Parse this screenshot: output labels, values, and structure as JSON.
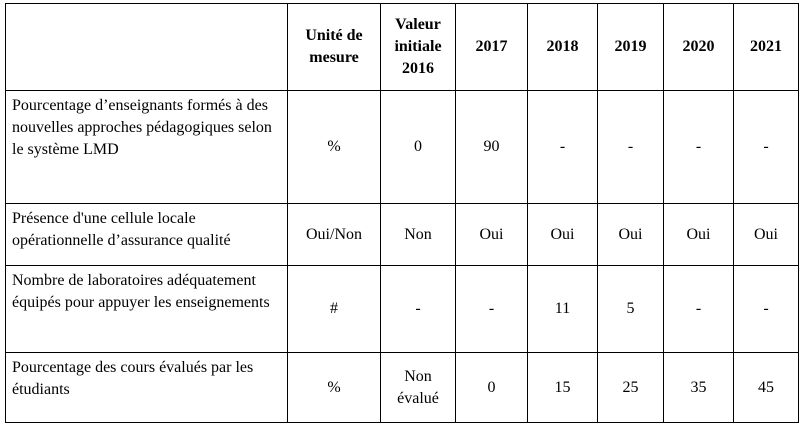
{
  "table": {
    "header": [
      "",
      "Unité de mesure",
      "Valeur initiale 2016",
      "2017",
      "2018",
      "2019",
      "2020",
      "2021"
    ],
    "rows": [
      [
        "Pourcentage d’enseignants formés à des nouvelles approches pédagogiques selon le système LMD",
        "%",
        "0",
        "90",
        "-",
        "-",
        "-",
        "-"
      ],
      [
        "Présence d'une cellule  locale opérationnelle d’assurance qualité",
        "Oui/Non",
        "Non",
        "Oui",
        "Oui",
        "Oui",
        "Oui",
        "Oui"
      ],
      [
        "Nombre de laboratoires adéquatement équipés pour appuyer les enseignements",
        "#",
        "-",
        "-",
        "11",
        "5",
        "-",
        "-"
      ],
      [
        "Pourcentage des cours évalués par les étudiants",
        "%",
        "Non évalué",
        "0",
        "15",
        "25",
        "35",
        "45"
      ]
    ]
  }
}
